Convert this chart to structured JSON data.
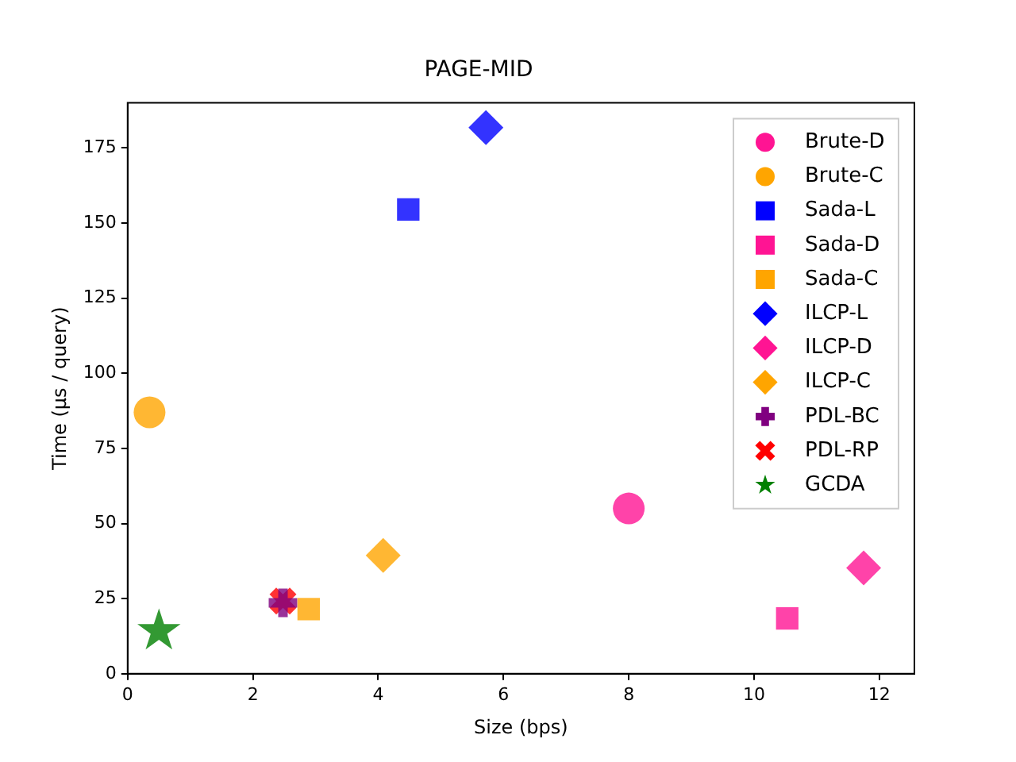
{
  "chart_data": {
    "type": "scatter",
    "title": "PAGE-MID",
    "xlabel": "Size (bps)",
    "ylabel": "Time (µs / query)",
    "xlim": [
      0,
      12.56
    ],
    "ylim": [
      0,
      190
    ],
    "xticks": [
      0,
      2,
      4,
      6,
      8,
      10,
      12
    ],
    "yticks": [
      0,
      25,
      50,
      75,
      100,
      125,
      150,
      175
    ],
    "grid": false,
    "legend": "top right",
    "series": [
      {
        "name": "Brute-D",
        "color": "#ff1493",
        "marker": "circle",
        "x": [
          8.0
        ],
        "values": [
          55
        ]
      },
      {
        "name": "Brute-C",
        "color": "#ffa500",
        "marker": "circle",
        "x": [
          0.35
        ],
        "values": [
          87
        ]
      },
      {
        "name": "Sada-L",
        "color": "#0000ff",
        "marker": "square",
        "x": [
          4.48
        ],
        "values": [
          154.5
        ]
      },
      {
        "name": "Sada-D",
        "color": "#ff1493",
        "marker": "square",
        "x": [
          10.53
        ],
        "values": [
          18.4
        ]
      },
      {
        "name": "Sada-C",
        "color": "#ffa500",
        "marker": "square",
        "x": [
          2.89
        ],
        "values": [
          21.5
        ]
      },
      {
        "name": "ILCP-L",
        "color": "#0000ff",
        "marker": "diamond",
        "x": [
          5.72
        ],
        "values": [
          181.8
        ]
      },
      {
        "name": "ILCP-D",
        "color": "#ff1493",
        "marker": "diamond",
        "x": [
          11.75
        ],
        "values": [
          35.2
        ]
      },
      {
        "name": "ILCP-C",
        "color": "#ffa500",
        "marker": "diamond",
        "x": [
          4.08
        ],
        "values": [
          39.4
        ]
      },
      {
        "name": "PDL-BC",
        "color": "#800080",
        "marker": "plus",
        "x": [
          2.48
        ],
        "values": [
          23.6
        ]
      },
      {
        "name": "PDL-RP",
        "color": "#ff0000",
        "marker": "cross",
        "x": [
          2.48
        ],
        "values": [
          24.2
        ]
      },
      {
        "name": "GCDA",
        "color": "#008000",
        "marker": "star",
        "x": [
          0.5
        ],
        "values": [
          14.2
        ]
      }
    ]
  }
}
